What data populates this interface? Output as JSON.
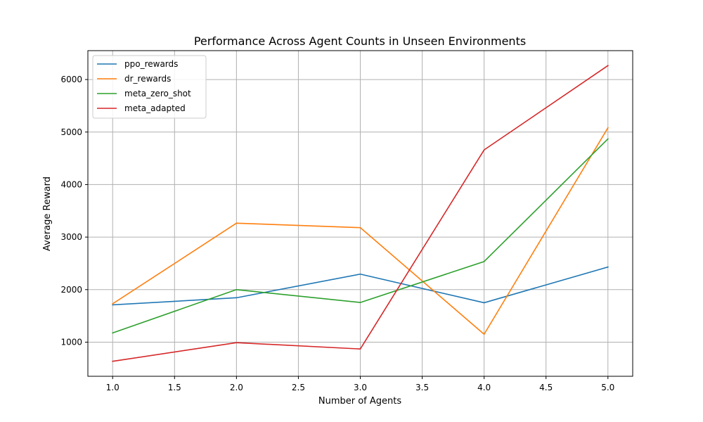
{
  "chart_data": {
    "type": "line",
    "title": "Performance Across Agent Counts in Unseen Environments",
    "xlabel": "Number of Agents",
    "ylabel": "Average Reward",
    "x": [
      1,
      2,
      3,
      4,
      5
    ],
    "xlim": [
      0.8,
      5.2
    ],
    "ylim": [
      350,
      6550
    ],
    "xticks": [
      1.0,
      1.5,
      2.0,
      2.5,
      3.0,
      3.5,
      4.0,
      4.5,
      5.0
    ],
    "xtick_labels": [
      "1.0",
      "1.5",
      "2.0",
      "2.5",
      "3.0",
      "3.5",
      "4.0",
      "4.5",
      "5.0"
    ],
    "yticks": [
      1000,
      2000,
      3000,
      4000,
      5000,
      6000
    ],
    "ytick_labels": [
      "1000",
      "2000",
      "3000",
      "4000",
      "5000",
      "6000"
    ],
    "grid": true,
    "legend_position": "upper-left",
    "series": [
      {
        "name": "ppo_rewards",
        "color": "#1f77b4",
        "values": [
          1710,
          1845,
          2295,
          1750,
          2430
        ]
      },
      {
        "name": "dr_rewards",
        "color": "#ff7f0e",
        "values": [
          1730,
          3265,
          3180,
          1150,
          5080
        ]
      },
      {
        "name": "meta_zero_shot",
        "color": "#2ca02c",
        "values": [
          1175,
          2000,
          1755,
          2535,
          4870
        ]
      },
      {
        "name": "meta_adapted",
        "color": "#d62728",
        "values": [
          635,
          990,
          870,
          4660,
          6265
        ]
      }
    ]
  }
}
